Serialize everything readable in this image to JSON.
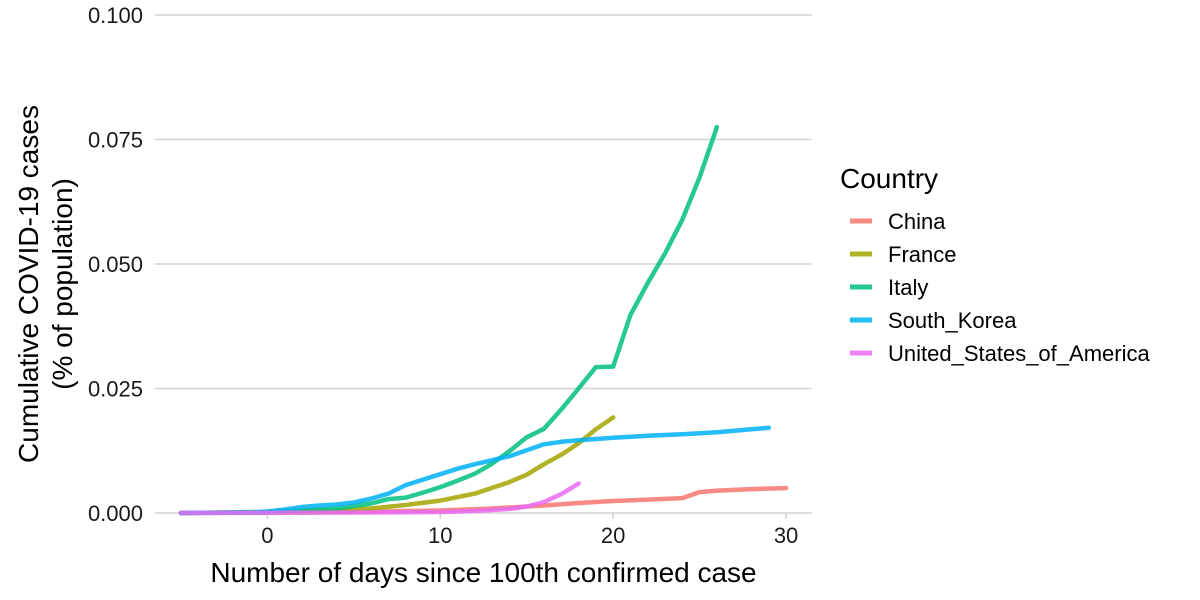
{
  "chart_data": {
    "type": "line",
    "title": "",
    "xlabel": "Number of days since 100th confirmed case",
    "ylabel": "Cumulative COVID-19 cases",
    "ylabel_sub": "(% of population)",
    "xlim": [
      -6.5,
      31.5
    ],
    "ylim": [
      0,
      0.1
    ],
    "x_ticks": [
      0,
      10,
      20,
      30
    ],
    "x_tick_labels": [
      "0",
      "10",
      "20",
      "30"
    ],
    "y_ticks": [
      0,
      0.025,
      0.05,
      0.075,
      0.1
    ],
    "y_tick_labels": [
      "0.000",
      "0.025",
      "0.050",
      "0.075",
      "0.100"
    ],
    "grid": "horizontal",
    "legend": {
      "title": "Country",
      "position": "right"
    },
    "series": [
      {
        "name": "China",
        "color": "#F8766D",
        "points": [
          [
            -5,
            0
          ],
          [
            0,
            0.0001
          ],
          [
            5,
            0.0002
          ],
          [
            10,
            0.0005
          ],
          [
            13,
            0.0009
          ],
          [
            16,
            0.0015
          ],
          [
            18,
            0.002
          ],
          [
            20,
            0.0024
          ],
          [
            22,
            0.0027
          ],
          [
            24,
            0.003
          ],
          [
            25,
            0.0042
          ],
          [
            26,
            0.0045
          ],
          [
            28,
            0.0048
          ],
          [
            30,
            0.005
          ]
        ]
      },
      {
        "name": "France",
        "color": "#A3A500",
        "points": [
          [
            -5,
            0
          ],
          [
            0,
            0.0002
          ],
          [
            4,
            0.0005
          ],
          [
            6,
            0.0009
          ],
          [
            8,
            0.0016
          ],
          [
            10,
            0.0025
          ],
          [
            12,
            0.0039
          ],
          [
            14,
            0.0062
          ],
          [
            15,
            0.0077
          ],
          [
            16,
            0.0098
          ],
          [
            17,
            0.0117
          ],
          [
            18,
            0.014
          ],
          [
            19,
            0.0168
          ],
          [
            20,
            0.0192
          ]
        ]
      },
      {
        "name": "Italy",
        "color": "#00BF7D",
        "points": [
          [
            -5,
            0
          ],
          [
            0,
            0.0002
          ],
          [
            4,
            0.0009
          ],
          [
            6,
            0.0019
          ],
          [
            7,
            0.0028
          ],
          [
            8,
            0.0031
          ],
          [
            9,
            0.0041
          ],
          [
            10,
            0.0052
          ],
          [
            11,
            0.0065
          ],
          [
            12,
            0.0079
          ],
          [
            13,
            0.0099
          ],
          [
            14,
            0.0124
          ],
          [
            15,
            0.0152
          ],
          [
            16,
            0.0169
          ],
          [
            17,
            0.0208
          ],
          [
            18,
            0.025
          ],
          [
            19,
            0.0293
          ],
          [
            20,
            0.0294
          ],
          [
            21,
            0.0398
          ],
          [
            22,
            0.0462
          ],
          [
            23,
            0.0521
          ],
          [
            24,
            0.0589
          ],
          [
            25,
            0.0674
          ],
          [
            26,
            0.0775
          ]
        ]
      },
      {
        "name": "South_Korea",
        "color": "#00B0F6",
        "points": [
          [
            -5,
            0
          ],
          [
            -1,
            0.0001
          ],
          [
            0,
            0.0003
          ],
          [
            1,
            0.0007
          ],
          [
            2,
            0.0012
          ],
          [
            3,
            0.0015
          ],
          [
            4,
            0.0017
          ],
          [
            5,
            0.0021
          ],
          [
            6,
            0.0029
          ],
          [
            7,
            0.0039
          ],
          [
            8,
            0.0056
          ],
          [
            9,
            0.0067
          ],
          [
            10,
            0.0078
          ],
          [
            11,
            0.0089
          ],
          [
            12,
            0.0098
          ],
          [
            13,
            0.0106
          ],
          [
            14,
            0.0114
          ],
          [
            15,
            0.0126
          ],
          [
            16,
            0.0138
          ],
          [
            17,
            0.0143
          ],
          [
            18,
            0.0146
          ],
          [
            20,
            0.0151
          ],
          [
            22,
            0.0155
          ],
          [
            24,
            0.0158
          ],
          [
            26,
            0.0162
          ],
          [
            27,
            0.0165
          ],
          [
            28,
            0.0168
          ],
          [
            29,
            0.0171
          ]
        ]
      },
      {
        "name": "United_States_of_America",
        "color": "#E76BF3",
        "points": [
          [
            -5,
            0
          ],
          [
            5,
            0.0001
          ],
          [
            10,
            0.0002
          ],
          [
            12,
            0.0004
          ],
          [
            14,
            0.0008
          ],
          [
            15,
            0.0013
          ],
          [
            16,
            0.0022
          ],
          [
            17,
            0.0038
          ],
          [
            18,
            0.0059
          ]
        ]
      }
    ]
  }
}
